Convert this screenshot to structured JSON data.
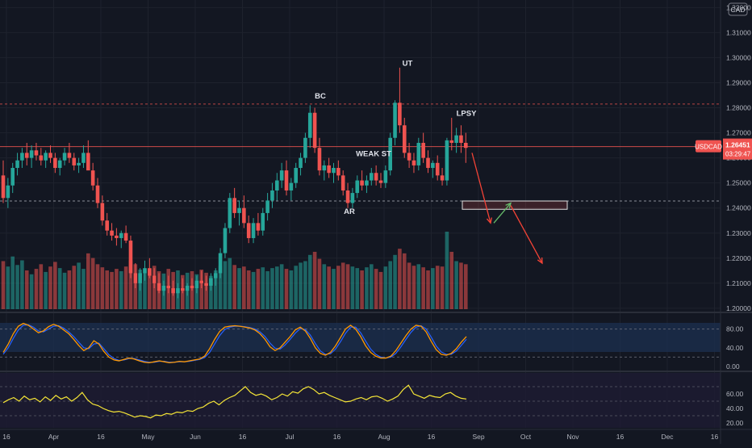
{
  "currency_label": "CAD",
  "colors": {
    "background": "#131722",
    "up": "#26a69a",
    "down": "#ef5350",
    "grid": "#1e222d",
    "text": "#b2b5be",
    "stoch_k": "#ff9800",
    "stoch_d": "#2962ff",
    "rsi": "#f5e537",
    "resistance": "#ef5350",
    "zone_border": "#e0e0e0",
    "arrow_down": "#f44336",
    "arrow_up": "#66bb6a"
  },
  "chart_data": {
    "type": "candlestick",
    "symbol": "USDCAD",
    "price_axis": {
      "range": [
        1.199,
        1.323
      ],
      "ticks": [
        "1.32000",
        "1.31000",
        "1.30000",
        "1.29000",
        "1.28000",
        "1.27000",
        "1.26000",
        "1.25000",
        "1.24000",
        "1.23000",
        "1.22000",
        "1.21000",
        "1.20000"
      ]
    },
    "time_axis_labels": [
      "16",
      "Apr",
      "16",
      "May",
      "Jun",
      "16",
      "Jul",
      "16",
      "Aug",
      "16",
      "Sep",
      "Oct",
      "Nov",
      "16",
      "Dec",
      "16"
    ],
    "last_price": {
      "symbol": "USDCAD",
      "price": "1.26451",
      "countdown": "03:29:47"
    },
    "horizontal_levels": [
      1.2815,
      1.2645,
      1.2428
    ],
    "annotations": [
      {
        "text": "BC",
        "price": 1.285
      },
      {
        "text": "UT",
        "price": 1.298
      },
      {
        "text": "LPSY",
        "price": 1.278
      },
      {
        "text": "WEAK ST",
        "price": 1.262
      },
      {
        "text": "AR",
        "price": 1.239
      }
    ],
    "target_zone": {
      "price_top": 1.2428,
      "price_bottom": 1.2395
    },
    "projection_arrows": [
      {
        "direction": "down",
        "from_price": 1.262,
        "to_price": 1.234
      },
      {
        "direction": "up",
        "from_price": 1.234,
        "to_price": 1.242
      },
      {
        "direction": "down",
        "from_price": 1.241,
        "to_price": 1.218
      }
    ],
    "candles_ohlc": [
      [
        1.253,
        1.259,
        1.242,
        1.244
      ],
      [
        1.244,
        1.252,
        1.24,
        1.249
      ],
      [
        1.249,
        1.258,
        1.246,
        1.256
      ],
      [
        1.256,
        1.262,
        1.253,
        1.259
      ],
      [
        1.259,
        1.264,
        1.256,
        1.262
      ],
      [
        1.262,
        1.266,
        1.257,
        1.26
      ],
      [
        1.26,
        1.265,
        1.256,
        1.263
      ],
      [
        1.263,
        1.266,
        1.259,
        1.261
      ],
      [
        1.261,
        1.264,
        1.257,
        1.259
      ],
      [
        1.259,
        1.263,
        1.256,
        1.262
      ],
      [
        1.262,
        1.265,
        1.258,
        1.26
      ],
      [
        1.26,
        1.262,
        1.254,
        1.256
      ],
      [
        1.256,
        1.26,
        1.253,
        1.259
      ],
      [
        1.259,
        1.264,
        1.257,
        1.262
      ],
      [
        1.262,
        1.266,
        1.258,
        1.26
      ],
      [
        1.26,
        1.262,
        1.255,
        1.257
      ],
      [
        1.257,
        1.26,
        1.254,
        1.258
      ],
      [
        1.258,
        1.265,
        1.256,
        1.262
      ],
      [
        1.262,
        1.267,
        1.258,
        1.255
      ],
      [
        1.255,
        1.258,
        1.247,
        1.249
      ],
      [
        1.249,
        1.252,
        1.24,
        1.242
      ],
      [
        1.242,
        1.245,
        1.233,
        1.235
      ],
      [
        1.235,
        1.238,
        1.229,
        1.231
      ],
      [
        1.231,
        1.234,
        1.227,
        1.229
      ],
      [
        1.229,
        1.232,
        1.225,
        1.228
      ],
      [
        1.228,
        1.231,
        1.224,
        1.23
      ],
      [
        1.23,
        1.233,
        1.226,
        1.227
      ],
      [
        1.227,
        1.229,
        1.212,
        1.214
      ],
      [
        1.214,
        1.218,
        1.208,
        1.21
      ],
      [
        1.21,
        1.216,
        1.207,
        1.214
      ],
      [
        1.214,
        1.219,
        1.211,
        1.216
      ],
      [
        1.216,
        1.22,
        1.212,
        1.213
      ],
      [
        1.213,
        1.216,
        1.208,
        1.21
      ],
      [
        1.21,
        1.214,
        1.206,
        1.207
      ],
      [
        1.207,
        1.211,
        1.205,
        1.209
      ],
      [
        1.209,
        1.213,
        1.206,
        1.208
      ],
      [
        1.208,
        1.211,
        1.205,
        1.206
      ],
      [
        1.206,
        1.21,
        1.204,
        1.208
      ],
      [
        1.208,
        1.212,
        1.206,
        1.207
      ],
      [
        1.207,
        1.21,
        1.205,
        1.209
      ],
      [
        1.209,
        1.212,
        1.207,
        1.208
      ],
      [
        1.208,
        1.213,
        1.206,
        1.211
      ],
      [
        1.211,
        1.215,
        1.208,
        1.21
      ],
      [
        1.21,
        1.213,
        1.207,
        1.209
      ],
      [
        1.209,
        1.214,
        1.207,
        1.212
      ],
      [
        1.212,
        1.216,
        1.209,
        1.214
      ],
      [
        1.214,
        1.224,
        1.212,
        1.222
      ],
      [
        1.222,
        1.234,
        1.22,
        1.232
      ],
      [
        1.232,
        1.246,
        1.23,
        1.244
      ],
      [
        1.244,
        1.248,
        1.236,
        1.238
      ],
      [
        1.238,
        1.243,
        1.233,
        1.24
      ],
      [
        1.24,
        1.245,
        1.232,
        1.234
      ],
      [
        1.234,
        1.237,
        1.226,
        1.228
      ],
      [
        1.228,
        1.236,
        1.226,
        1.234
      ],
      [
        1.234,
        1.238,
        1.229,
        1.231
      ],
      [
        1.231,
        1.24,
        1.229,
        1.238
      ],
      [
        1.238,
        1.246,
        1.235,
        1.243
      ],
      [
        1.243,
        1.25,
        1.24,
        1.247
      ],
      [
        1.247,
        1.254,
        1.243,
        1.251
      ],
      [
        1.251,
        1.258,
        1.248,
        1.255
      ],
      [
        1.255,
        1.259,
        1.245,
        1.247
      ],
      [
        1.247,
        1.252,
        1.243,
        1.25
      ],
      [
        1.25,
        1.258,
        1.248,
        1.256
      ],
      [
        1.256,
        1.262,
        1.253,
        1.26
      ],
      [
        1.26,
        1.27,
        1.258,
        1.268
      ],
      [
        1.268,
        1.281,
        1.264,
        1.278
      ],
      [
        1.278,
        1.28,
        1.262,
        1.264
      ],
      [
        1.264,
        1.268,
        1.253,
        1.255
      ],
      [
        1.255,
        1.259,
        1.251,
        1.257
      ],
      [
        1.257,
        1.26,
        1.252,
        1.254
      ],
      [
        1.254,
        1.258,
        1.25,
        1.256
      ],
      [
        1.256,
        1.259,
        1.251,
        1.253
      ],
      [
        1.253,
        1.255,
        1.245,
        1.247
      ],
      [
        1.247,
        1.25,
        1.24,
        1.242
      ],
      [
        1.242,
        1.248,
        1.24,
        1.246
      ],
      [
        1.246,
        1.253,
        1.244,
        1.251
      ],
      [
        1.251,
        1.255,
        1.247,
        1.249
      ],
      [
        1.249,
        1.253,
        1.246,
        1.251
      ],
      [
        1.251,
        1.256,
        1.249,
        1.254
      ],
      [
        1.254,
        1.257,
        1.249,
        1.251
      ],
      [
        1.251,
        1.254,
        1.248,
        1.25
      ],
      [
        1.25,
        1.257,
        1.248,
        1.255
      ],
      [
        1.255,
        1.27,
        1.253,
        1.268
      ],
      [
        1.268,
        1.283,
        1.265,
        1.282
      ],
      [
        1.282,
        1.296,
        1.27,
        1.273
      ],
      [
        1.273,
        1.276,
        1.26,
        1.262
      ],
      [
        1.262,
        1.266,
        1.256,
        1.259
      ],
      [
        1.259,
        1.262,
        1.254,
        1.257
      ],
      [
        1.257,
        1.268,
        1.255,
        1.266
      ],
      [
        1.266,
        1.27,
        1.258,
        1.26
      ],
      [
        1.26,
        1.263,
        1.254,
        1.256
      ],
      [
        1.256,
        1.259,
        1.252,
        1.258
      ],
      [
        1.258,
        1.261,
        1.251,
        1.253
      ],
      [
        1.253,
        1.256,
        1.249,
        1.251
      ],
      [
        1.251,
        1.268,
        1.249,
        1.267
      ],
      [
        1.267,
        1.276,
        1.263,
        1.266
      ],
      [
        1.266,
        1.272,
        1.262,
        1.269
      ],
      [
        1.269,
        1.273,
        1.262,
        1.266
      ],
      [
        1.266,
        1.27,
        1.258,
        1.264
      ]
    ],
    "volume": [
      0.62,
      0.55,
      0.68,
      0.57,
      0.63,
      0.5,
      0.45,
      0.52,
      0.58,
      0.48,
      0.55,
      0.61,
      0.53,
      0.47,
      0.5,
      0.56,
      0.6,
      0.52,
      0.72,
      0.66,
      0.58,
      0.54,
      0.5,
      0.48,
      0.52,
      0.49,
      0.55,
      0.63,
      0.58,
      0.51,
      0.47,
      0.52,
      0.56,
      0.49,
      0.46,
      0.52,
      0.48,
      0.5,
      0.44,
      0.47,
      0.49,
      0.45,
      0.51,
      0.47,
      0.43,
      0.5,
      0.56,
      0.62,
      0.66,
      0.57,
      0.53,
      0.55,
      0.5,
      0.48,
      0.52,
      0.54,
      0.49,
      0.53,
      0.55,
      0.58,
      0.52,
      0.5,
      0.56,
      0.6,
      0.62,
      0.7,
      0.74,
      0.65,
      0.58,
      0.55,
      0.52,
      0.56,
      0.6,
      0.58,
      0.55,
      0.53,
      0.5,
      0.54,
      0.58,
      0.52,
      0.48,
      0.55,
      0.62,
      0.7,
      0.78,
      0.72,
      0.6,
      0.56,
      0.58,
      0.54,
      0.5,
      0.53,
      0.56,
      0.55,
      1.0,
      0.74,
      0.62,
      0.6,
      0.58
    ],
    "stochastic": {
      "ticks": [
        "80.00",
        "40.00",
        "0.00"
      ],
      "levels": [
        80,
        20
      ],
      "k": [
        30,
        48,
        70,
        86,
        92,
        88,
        80,
        72,
        76,
        85,
        90,
        86,
        78,
        70,
        58,
        45,
        34,
        40,
        55,
        48,
        32,
        20,
        14,
        12,
        15,
        18,
        16,
        12,
        9,
        8,
        10,
        12,
        10,
        8,
        9,
        11,
        10,
        12,
        14,
        16,
        22,
        38,
        58,
        75,
        84,
        86,
        87,
        86,
        84,
        82,
        78,
        70,
        58,
        42,
        34,
        40,
        52,
        64,
        78,
        84,
        76,
        60,
        40,
        28,
        24,
        30,
        44,
        62,
        80,
        88,
        80,
        64,
        44,
        30,
        22,
        18,
        18,
        22,
        34,
        50,
        66,
        80,
        88,
        86,
        74,
        54,
        36,
        26,
        24,
        28,
        38,
        52,
        64
      ],
      "d": [
        26,
        40,
        60,
        78,
        88,
        89,
        84,
        76,
        74,
        80,
        86,
        87,
        82,
        74,
        64,
        52,
        40,
        38,
        48,
        50,
        38,
        25,
        17,
        13,
        14,
        17,
        17,
        14,
        11,
        9,
        9,
        11,
        11,
        9,
        9,
        10,
        10,
        11,
        13,
        15,
        19,
        30,
        48,
        66,
        79,
        84,
        86,
        86,
        85,
        83,
        80,
        74,
        64,
        50,
        39,
        37,
        46,
        58,
        71,
        81,
        79,
        67,
        49,
        33,
        26,
        27,
        37,
        53,
        71,
        84,
        84,
        72,
        54,
        37,
        26,
        20,
        18,
        20,
        28,
        42,
        58,
        73,
        84,
        87,
        80,
        63,
        44,
        31,
        26,
        26,
        33,
        45,
        58
      ]
    },
    "rsi": {
      "ticks": [
        "60.00",
        "40.00",
        "20.00"
      ],
      "values": [
        48,
        52,
        55,
        50,
        57,
        52,
        54,
        49,
        56,
        51,
        58,
        53,
        56,
        50,
        55,
        62,
        52,
        46,
        44,
        40,
        37,
        35,
        36,
        34,
        31,
        28,
        30,
        29,
        27,
        31,
        30,
        33,
        32,
        35,
        34,
        37,
        36,
        40,
        42,
        47,
        50,
        45,
        51,
        55,
        58,
        64,
        70,
        62,
        58,
        60,
        57,
        52,
        55,
        60,
        57,
        63,
        61,
        67,
        70,
        66,
        60,
        62,
        58,
        55,
        52,
        49,
        50,
        53,
        55,
        52,
        56,
        57,
        54,
        50,
        53,
        57,
        66,
        72,
        60,
        57,
        54,
        58,
        56,
        55,
        60,
        62,
        57,
        54,
        53
      ]
    }
  }
}
